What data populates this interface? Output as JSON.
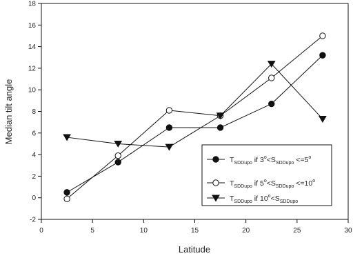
{
  "chart_data": {
    "type": "line",
    "xlabel": "Latitude",
    "ylabel": "Median tilt angle",
    "xlim": [
      0,
      30
    ],
    "ylim": [
      -2,
      18
    ],
    "xticks": [
      0,
      5,
      10,
      15,
      20,
      25,
      30
    ],
    "yticks": [
      -2,
      0,
      2,
      4,
      6,
      8,
      10,
      12,
      14,
      16,
      18
    ],
    "grid": false,
    "legend_position": "bottom-right",
    "x": [
      2.5,
      7.5,
      12.5,
      17.5,
      22.5,
      27.5
    ],
    "series": [
      {
        "name": "T_SDDupo if 3°<S_SDDupo <=5°",
        "marker": "filled-circle",
        "values": [
          0.5,
          3.3,
          6.5,
          6.5,
          8.7,
          13.2
        ],
        "legend": {
          "main": "T",
          "sub": "SDDupo",
          "text1": " if  3",
          "sup1": "o",
          "text2": "<S",
          "sub2": "SDDupo",
          "text3": " <=5",
          "sup3": "o"
        }
      },
      {
        "name": "T_SDDupo if 5°<S_SDDupo <=10°",
        "marker": "open-circle",
        "values": [
          -0.1,
          3.9,
          8.1,
          7.6,
          11.1,
          15.0
        ],
        "legend": {
          "main": "T",
          "sub": "SDDupo",
          "text1": " if  5",
          "sup1": "o",
          "text2": "<S",
          "sub2": "SDDupo",
          "text3": " <=10",
          "sup3": "o"
        }
      },
      {
        "name": "T_SDDupo if 10°<S_SDDupo",
        "marker": "filled-triangle-down",
        "values": [
          5.6,
          5.0,
          4.7,
          7.6,
          12.4,
          7.3
        ],
        "legend": {
          "main": "T",
          "sub": "SDDupo",
          "text1": " if  10",
          "sup1": "o",
          "text2": "<S",
          "sub2": "SDDupo",
          "text3": "",
          "sup3": ""
        }
      }
    ]
  }
}
